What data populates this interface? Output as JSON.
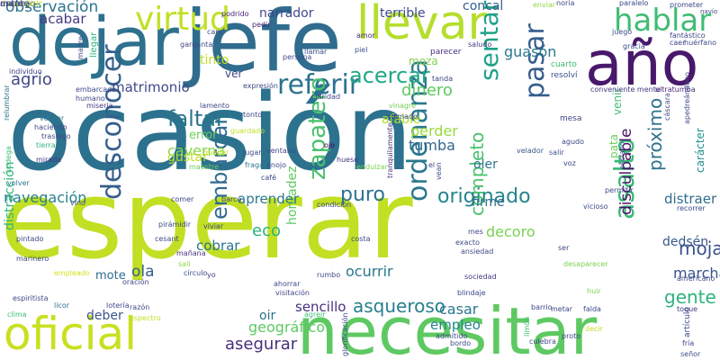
{
  "words": [
    {
      "text": "ocasión",
      "color": "#2c728e"
    },
    {
      "text": "esperar",
      "color": "#c2df23"
    },
    {
      "text": "jefe",
      "color": "#2f6c8e"
    },
    {
      "text": "dejar",
      "color": "#2d718e"
    },
    {
      "text": "año",
      "color": "#48186a"
    },
    {
      "text": "llevar",
      "color": "#b5de2b"
    },
    {
      "text": "necesitar",
      "color": "#5ec962"
    },
    {
      "text": "oficial",
      "color": "#c8e020"
    },
    {
      "text": "virtud",
      "color": "#c2df23"
    },
    {
      "text": "hablar",
      "color": "#3fbc73"
    },
    {
      "text": "desconocer",
      "color": "#355f8d"
    },
    {
      "text": "referir",
      "color": "#2c728e"
    },
    {
      "text": "zapatero",
      "color": "#4ac16d"
    },
    {
      "text": "ordenanza",
      "color": "#2a788e"
    },
    {
      "text": "sentar",
      "color": "#1fa187"
    },
    {
      "text": "pasar",
      "color": "#365d8d"
    },
    {
      "text": "asalto",
      "color": "#38b977"
    },
    {
      "text": "embarcar",
      "color": "#306a8e"
    },
    {
      "text": "acercar",
      "color": "#22a884"
    },
    {
      "text": "originado",
      "color": "#25848e"
    },
    {
      "text": "navegación",
      "color": "#26828e"
    },
    {
      "text": "faltar",
      "color": "#2a768e"
    },
    {
      "text": "puro",
      "color": "#2b748e"
    },
    {
      "text": "completo",
      "color": "#4ac16d"
    },
    {
      "text": "asqueroso",
      "color": "#277f8e"
    },
    {
      "text": "gente",
      "color": "#2fb47c"
    },
    {
      "text": "observación",
      "color": "#2c738e"
    },
    {
      "text": "mojama",
      "color": "#3b518b"
    },
    {
      "text": "agrio",
      "color": "#404688"
    },
    {
      "text": "dinero",
      "color": "#5ec962"
    },
    {
      "text": "caverna",
      "color": "#86d549"
    },
    {
      "text": "perder",
      "color": "#9bd93c"
    },
    {
      "text": "guasón",
      "color": "#2a778e"
    },
    {
      "text": "matrimonio",
      "color": "#3f4889"
    },
    {
      "text": "acabar",
      "color": "#443b84"
    },
    {
      "text": "narrador",
      "color": "#3e4989"
    },
    {
      "text": "terrible",
      "color": "#3e4a89"
    },
    {
      "text": "concal",
      "color": "#355e8d"
    },
    {
      "text": "tumba",
      "color": "#31668e"
    },
    {
      "text": "disculpable",
      "color": "#471365"
    },
    {
      "text": "distraer",
      "color": "#2e6e8e"
    },
    {
      "text": "próximo",
      "color": "#2c728e"
    },
    {
      "text": "sencillo",
      "color": "#46327e"
    },
    {
      "text": "asegurar",
      "color": "#46307e"
    },
    {
      "text": "geográfico",
      "color": "#5ec962"
    },
    {
      "text": "marchar",
      "color": "#3b528b"
    },
    {
      "text": "dedsén",
      "color": "#38588c"
    },
    {
      "text": "empleo",
      "color": "#25858e"
    },
    {
      "text": "casar",
      "color": "#2a788e"
    },
    {
      "text": "ocurrir",
      "color": "#2a788e"
    },
    {
      "text": "decoro",
      "color": "#7ad151"
    },
    {
      "text": "firme",
      "color": "#2d708e"
    },
    {
      "text": "honradez",
      "color": "#5ec962"
    },
    {
      "text": "eco",
      "color": "#2db27d"
    },
    {
      "text": "cobrar",
      "color": "#2b748e"
    },
    {
      "text": "aprender",
      "color": "#2a788e"
    },
    {
      "text": "ola",
      "color": "#365c8d"
    },
    {
      "text": "mote",
      "color": "#2f6b8e"
    },
    {
      "text": "deber",
      "color": "#3a548c"
    },
    {
      "text": "oir",
      "color": "#2c728e"
    },
    {
      "text": "distracción",
      "color": "#2fb47c"
    },
    {
      "text": "carácter",
      "color": "#21908d"
    },
    {
      "text": "afable",
      "color": "#b5de2b"
    },
    {
      "text": "tinto",
      "color": "#c2df23"
    },
    {
      "text": "ver",
      "color": "#3f4788"
    },
    {
      "text": "error",
      "color": "#6ccd5a"
    },
    {
      "text": "gustar",
      "color": "#bddf26"
    },
    {
      "text": "oler",
      "color": "#2c728e"
    },
    {
      "text": "venir",
      "color": "#3dbc74"
    },
    {
      "text": "pata",
      "color": "#6ccd5a"
    },
    {
      "text": "moza",
      "color": "#7fd34e"
    },
    {
      "text": "navío",
      "color": "#3e4a89"
    },
    {
      "text": "enviar",
      "color": "#90d743"
    },
    {
      "text": "paralelo",
      "color": "#3e4a89"
    },
    {
      "text": "prometer",
      "color": "#3e4989"
    },
    {
      "text": "podrido",
      "color": "#482878"
    },
    {
      "text": "cara",
      "color": "#3a538b"
    },
    {
      "text": "garganta",
      "color": "#3e4989"
    },
    {
      "text": "pedir",
      "color": "#482475"
    },
    {
      "text": "amor",
      "color": "#472d7b"
    },
    {
      "text": "llamar",
      "color": "#3d4e8a"
    },
    {
      "text": "piel",
      "color": "#3b528b"
    },
    {
      "text": "saludo",
      "color": "#443a83"
    },
    {
      "text": "parecer",
      "color": "#46307e"
    },
    {
      "text": "juego",
      "color": "#3e4989"
    },
    {
      "text": "caer",
      "color": "#3f4788"
    },
    {
      "text": "individuo",
      "color": "#414487"
    },
    {
      "text": "llegar",
      "color": "#2fb47c"
    },
    {
      "text": "cuarto",
      "color": "#3dbc74"
    },
    {
      "text": "resolví",
      "color": "#3b518b"
    },
    {
      "text": "conveniente mente",
      "color": "#453581"
    },
    {
      "text": "ultratumba",
      "color": "#482677"
    },
    {
      "text": "humano",
      "color": "#3f4788"
    },
    {
      "text": "miseria",
      "color": "#453882"
    },
    {
      "text": "claridad",
      "color": "#3e4a89"
    },
    {
      "text": "llamado",
      "color": "#3d4e8a"
    },
    {
      "text": "vinagre",
      "color": "#75d054"
    },
    {
      "text": "mesa",
      "color": "#3e4989"
    },
    {
      "text": "tonto",
      "color": "#404688"
    },
    {
      "text": "agudo",
      "color": "#3f4788"
    },
    {
      "text": "salir",
      "color": "#3a538b"
    },
    {
      "text": "voz",
      "color": "#3e4989"
    },
    {
      "text": "velador",
      "color": "#39558c"
    },
    {
      "text": "ojo",
      "color": "#440154"
    },
    {
      "text": "hueso",
      "color": "#453882"
    },
    {
      "text": "endulzar",
      "color": "#7ad151"
    },
    {
      "text": "jugar",
      "color": "#3e4989"
    },
    {
      "text": "fragata",
      "color": "#2a788e"
    },
    {
      "text": "maestre",
      "color": "#6ccd5a"
    },
    {
      "text": "tranquilamente",
      "color": "#46327e"
    },
    {
      "text": "vocear",
      "color": "#2a778e"
    },
    {
      "text": "haciendo",
      "color": "#3e4989"
    },
    {
      "text": "trasiego",
      "color": "#3e4a89"
    },
    {
      "text": "tierra",
      "color": "#2fb47c"
    },
    {
      "text": "mirada",
      "color": "#453781"
    },
    {
      "text": "volver",
      "color": "#2a778e"
    },
    {
      "text": "relumbrar",
      "color": "#2c728e"
    },
    {
      "text": "bodega",
      "color": "#3fbc73"
    },
    {
      "text": "pintado",
      "color": "#3e4989"
    },
    {
      "text": "marinero",
      "color": "#3e4989"
    },
    {
      "text": "empleado",
      "color": "#d2e21b"
    },
    {
      "text": "pirámidir",
      "color": "#3e4a89"
    },
    {
      "text": "cesant",
      "color": "#3e4a89"
    },
    {
      "text": "mañana",
      "color": "#46327e"
    },
    {
      "text": "sali",
      "color": "#90d743"
    },
    {
      "text": "círculo",
      "color": "#3d4e8a"
    },
    {
      "text": "yo",
      "color": "#453882"
    },
    {
      "text": "oración",
      "color": "#3e4989"
    },
    {
      "text": "condición",
      "color": "#3e4989"
    },
    {
      "text": "costa",
      "color": "#3e4989"
    },
    {
      "text": "mes",
      "color": "#3e4989"
    },
    {
      "text": "exacto",
      "color": "#3e4989"
    },
    {
      "text": "ansiedad",
      "color": "#3e4a89"
    },
    {
      "text": "sociedad",
      "color": "#453882"
    },
    {
      "text": "blindaje",
      "color": "#3e4989"
    },
    {
      "text": "recorrer",
      "color": "#3e4989"
    },
    {
      "text": "americano",
      "color": "#3e4a89"
    },
    {
      "text": "toque",
      "color": "#433d84"
    },
    {
      "text": "lotería",
      "color": "#3e4989"
    },
    {
      "text": "razón",
      "color": "#3e4989"
    },
    {
      "text": "espectro",
      "color": "#c2df23"
    },
    {
      "text": "licor",
      "color": "#2c728e"
    },
    {
      "text": "clima",
      "color": "#3fbc73"
    },
    {
      "text": "ahorrar",
      "color": "#3e4a89"
    },
    {
      "text": "agreir",
      "color": "#3fbc73"
    },
    {
      "text": "barrio",
      "color": "#3e4989"
    },
    {
      "text": "metar",
      "color": "#3e4989"
    },
    {
      "text": "falda",
      "color": "#3e4989"
    },
    {
      "text": "decir",
      "color": "#c2df23"
    },
    {
      "text": "culebra",
      "color": "#3e4989"
    },
    {
      "text": "bordo",
      "color": "#3e4989"
    },
    {
      "text": "admitido",
      "color": "#3e4989"
    },
    {
      "text": "limón",
      "color": "#3dbc74"
    },
    {
      "text": "artículo",
      "color": "#3e4989"
    },
    {
      "text": "fría",
      "color": "#3e4989"
    },
    {
      "text": "señor",
      "color": "#3e4a89"
    },
    {
      "text": "viviar",
      "color": "#3e4989"
    },
    {
      "text": "comer",
      "color": "#3e4989"
    },
    {
      "text": "vino",
      "color": "#3e4a89"
    },
    {
      "text": "esclavo",
      "color": "#3e4989"
    },
    {
      "text": "cáscara",
      "color": "#3e4989"
    },
    {
      "text": "apedreándono",
      "color": "#3e4989"
    },
    {
      "text": "fantástico",
      "color": "#3e4989"
    },
    {
      "text": "huérfano",
      "color": "#3e4989"
    },
    {
      "text": "gracia",
      "color": "#3e4989"
    },
    {
      "text": "el",
      "color": "#3e4989"
    },
    {
      "text": "permitir",
      "color": "#3e4989"
    },
    {
      "text": "vicioso",
      "color": "#3e4989"
    },
    {
      "text": "huir",
      "color": "#7ad151"
    },
    {
      "text": "desaparecer",
      "color": "#7ad151"
    },
    {
      "text": "ser",
      "color": "#3e4989"
    },
    {
      "text": "proto",
      "color": "#3e4989"
    },
    {
      "text": "noria",
      "color": "#3e4989"
    },
    {
      "text": "madre",
      "color": "#3e4989"
    },
    {
      "text": "persona",
      "color": "#3e4989"
    },
    {
      "text": "expresión",
      "color": "#3e4989"
    },
    {
      "text": "tanda",
      "color": "#3e4989"
    },
    {
      "text": "guardado",
      "color": "#c2df23"
    },
    {
      "text": "lamento",
      "color": "#3e4989"
    },
    {
      "text": "quedar",
      "color": "#c2df23"
    },
    {
      "text": "barco",
      "color": "#3e4989"
    },
    {
      "text": "enojo",
      "color": "#3e4989"
    },
    {
      "text": "ventana",
      "color": "#3e4989"
    },
    {
      "text": "café",
      "color": "#3e4989"
    },
    {
      "text": "vean",
      "color": "#3e4989"
    },
    {
      "text": "rumbo",
      "color": "#3e4989"
    },
    {
      "text": "glorificación",
      "color": "#3e4989"
    },
    {
      "text": "visitación",
      "color": "#3e4989"
    },
    {
      "text": "espiritista",
      "color": "#3e4989"
    },
    {
      "text": "embarcado",
      "color": "#3e4989"
    },
    {
      "text": "escargo",
      "color": "#3e4989"
    },
    {
      "text": "descubrir",
      "color": "#c2df23"
    },
    {
      "text": "monte",
      "color": "#3e4989"
    },
    {
      "text": "antro",
      "color": "#3e4989"
    }
  ]
}
